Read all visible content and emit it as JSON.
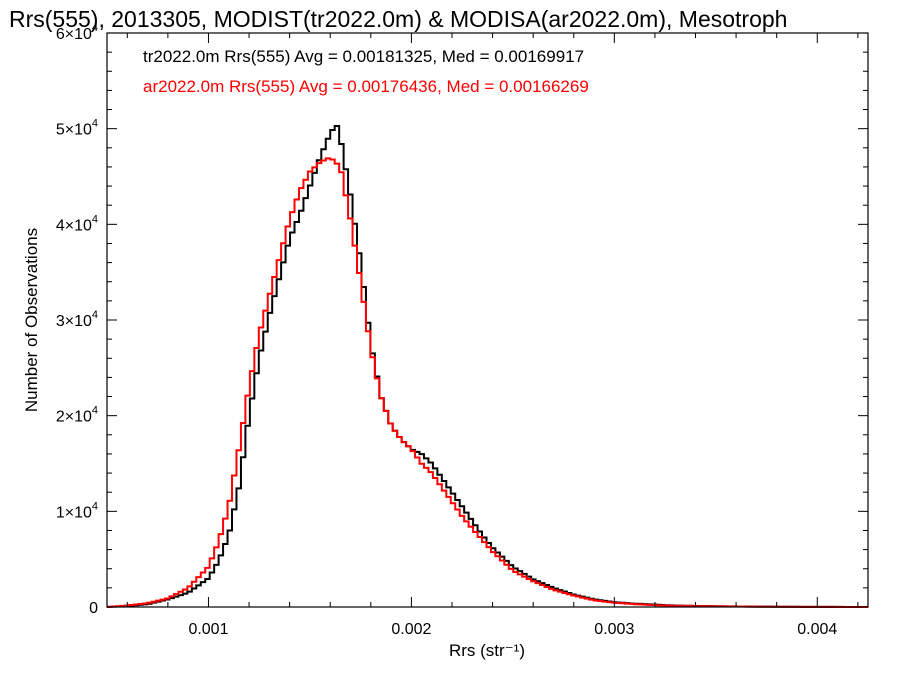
{
  "chart_data": {
    "type": "line",
    "title": "Rrs(555), 2013305, MODIST(tr2022.0m) & MODISA(ar2022.0m), Mesotroph",
    "xlabel": "Rrs (str⁻¹)",
    "ylabel": "Number of Observations",
    "xlim": [
      0.0005,
      0.00425
    ],
    "ylim": [
      0,
      60000
    ],
    "x_ticks": [
      0.001,
      0.002,
      0.003,
      0.004
    ],
    "x_tick_labels": [
      "0.001",
      "0.002",
      "0.003",
      "0.004"
    ],
    "y_ticks": [
      0,
      10000,
      20000,
      30000,
      40000,
      50000,
      60000
    ],
    "y_tick_labels": [
      {
        "mantissa": "0",
        "exp": ""
      },
      {
        "mantissa": "1×10",
        "exp": "4"
      },
      {
        "mantissa": "2×10",
        "exp": "4"
      },
      {
        "mantissa": "3×10",
        "exp": "4"
      },
      {
        "mantissa": "4×10",
        "exp": "4"
      },
      {
        "mantissa": "5×10",
        "exp": "4"
      },
      {
        "mantissa": "6×10",
        "exp": "4"
      }
    ],
    "annotations": [
      {
        "text": "tr2022.0m Rrs(555) Avg = 0.00181325, Med = 0.00169917",
        "color": "#000000"
      },
      {
        "text": "ar2022.0m Rrs(555) Avg = 0.00176436, Med = 0.00166269",
        "color": "#ff0000"
      }
    ],
    "grid": false,
    "series": [
      {
        "color": "#000000",
        "x": [
          0.0005,
          0.0006,
          0.0007,
          0.0008,
          0.0009,
          0.001,
          0.00105,
          0.0011,
          0.00115,
          0.0012,
          0.00125,
          0.0013,
          0.00135,
          0.0014,
          0.00145,
          0.0015,
          0.00155,
          0.0016,
          0.00163,
          0.00165,
          0.0017,
          0.00175,
          0.0018,
          0.00185,
          0.0019,
          0.00195,
          0.002,
          0.00205,
          0.0021,
          0.00215,
          0.0022,
          0.00225,
          0.0023,
          0.00235,
          0.0024,
          0.0025,
          0.0026,
          0.0027,
          0.0028,
          0.0029,
          0.003,
          0.0031,
          0.0032,
          0.0033,
          0.0035,
          0.0037,
          0.0039,
          0.00425
        ],
        "y": [
          0,
          100,
          300,
          800,
          1500,
          3000,
          4800,
          7500,
          12500,
          20000,
          26000,
          30500,
          34500,
          38500,
          41000,
          44000,
          47000,
          49500,
          50500,
          49000,
          43000,
          36000,
          27500,
          22000,
          19000,
          17500,
          16500,
          16000,
          15000,
          13500,
          12000,
          10500,
          9000,
          7500,
          6200,
          4200,
          2900,
          2000,
          1300,
          800,
          500,
          350,
          250,
          150,
          80,
          40,
          20,
          0
        ]
      },
      {
        "color": "#ff0000",
        "x": [
          0.0005,
          0.0006,
          0.0007,
          0.0008,
          0.0009,
          0.001,
          0.00105,
          0.0011,
          0.00115,
          0.0012,
          0.00125,
          0.0013,
          0.00135,
          0.0014,
          0.00145,
          0.0015,
          0.00155,
          0.0016,
          0.00165,
          0.0017,
          0.00175,
          0.0018,
          0.00185,
          0.0019,
          0.00195,
          0.002,
          0.00205,
          0.0021,
          0.00215,
          0.0022,
          0.00225,
          0.0023,
          0.00235,
          0.0024,
          0.0025,
          0.0026,
          0.0027,
          0.0028,
          0.0029,
          0.003,
          0.0031,
          0.0032,
          0.0033,
          0.0035,
          0.0037,
          0.0039,
          0.00425
        ],
        "y": [
          0,
          150,
          400,
          900,
          2000,
          4200,
          6800,
          10500,
          16500,
          23000,
          28500,
          32500,
          36500,
          40500,
          43500,
          45500,
          46500,
          47000,
          46000,
          40500,
          34000,
          27000,
          22000,
          19000,
          17500,
          16500,
          15000,
          14000,
          12500,
          11000,
          9500,
          8200,
          7000,
          5800,
          3800,
          2700,
          1800,
          1200,
          700,
          450,
          300,
          200,
          120,
          70,
          35,
          15,
          0
        ]
      }
    ]
  }
}
